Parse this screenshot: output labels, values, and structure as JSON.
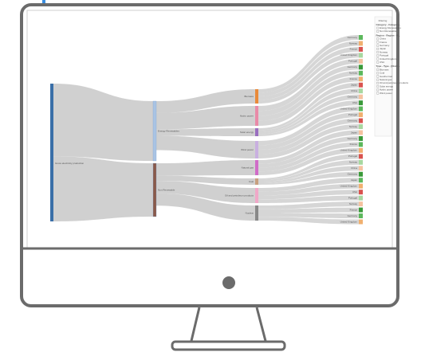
{
  "screen": {
    "sankey": {
      "source": "Gross electricity production",
      "categories": [
        "Energy Renewables",
        "Non Renewable"
      ],
      "types": [
        "Biomass",
        "Hydro power",
        "Solar energy",
        "Wind power",
        "Natural gas",
        "Coal",
        "Oil and petroleum products",
        "Nuclear"
      ],
      "targets": [
        "Germany",
        "Norway",
        "France",
        "United Kingdom",
        "Portugal",
        "Germany",
        "Norway",
        "France",
        "Japan",
        "China",
        "Germany",
        "USA",
        "United Kingdom",
        "Portugal",
        "Germany",
        "Norway",
        "Japan",
        "Germany",
        "France",
        "United Kingdom",
        "Portugal",
        "Norway",
        "China",
        "Germany",
        "Japan",
        "United Kingdom",
        "USA",
        "Portugal",
        "Norway",
        "France",
        "Germany",
        "United Kingdom"
      ]
    },
    "filter_panel": {
      "title": "Filtering",
      "sections": [
        {
          "title": "Category - Category...",
          "items": [
            "Energy Renewables",
            "Non Renewable"
          ]
        },
        {
          "title": "Region - Region - R...",
          "items": [
            "China",
            "France",
            "Germany",
            "Japan",
            "Norway",
            "Portugal",
            "United Kingdom",
            "USA"
          ]
        },
        {
          "title": "Type - Type - [Distri...",
          "items": [
            "Biomass",
            "Coal",
            "Geothermal",
            "Natural gas",
            "Oil and petroleum products",
            "Solar energy",
            "Hydro power",
            "Wind power"
          ]
        }
      ]
    }
  }
}
